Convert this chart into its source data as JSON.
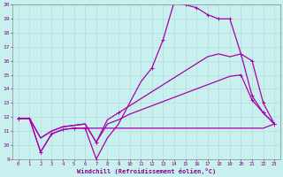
{
  "background_color": "#c8f0ee",
  "grid_color": "#b0d8d8",
  "line_color": "#aa00aa",
  "xlabel": "Windchill (Refroidissement éolien,°C)",
  "xlabel_color": "#880088",
  "tick_color": "#880088",
  "xlim": [
    -0.5,
    23.5
  ],
  "ylim": [
    9,
    20
  ],
  "xticks": [
    0,
    1,
    2,
    3,
    4,
    5,
    6,
    7,
    8,
    9,
    10,
    11,
    12,
    13,
    14,
    15,
    16,
    17,
    18,
    19,
    20,
    21,
    22,
    23
  ],
  "yticks": [
    9,
    10,
    11,
    12,
    13,
    14,
    15,
    16,
    17,
    18,
    19,
    20
  ],
  "line1_x": [
    0,
    1,
    2,
    3,
    4,
    5,
    6,
    7,
    8,
    9,
    10,
    11,
    12,
    13,
    14,
    15,
    16,
    17,
    18,
    19,
    20,
    21,
    22,
    23
  ],
  "line1_y": [
    11.9,
    11.9,
    9.5,
    10.8,
    11.1,
    11.2,
    11.2,
    11.2,
    11.2,
    11.2,
    11.2,
    11.2,
    11.2,
    11.2,
    11.2,
    11.2,
    11.2,
    11.2,
    11.2,
    11.2,
    11.2,
    11.2,
    11.2,
    11.5
  ],
  "line1_mx": [
    0,
    1,
    2,
    3,
    4,
    5,
    6,
    23
  ],
  "line1_my": [
    11.9,
    11.9,
    9.5,
    10.8,
    11.1,
    11.2,
    11.2,
    11.5
  ],
  "line2_x": [
    0,
    1,
    2,
    3,
    4,
    5,
    6,
    7,
    8,
    9,
    10,
    11,
    12,
    13,
    14,
    15,
    16,
    17,
    18,
    19,
    20,
    21,
    22,
    23
  ],
  "line2_y": [
    11.9,
    11.9,
    10.5,
    11.0,
    11.3,
    11.4,
    11.5,
    10.2,
    11.5,
    11.8,
    12.2,
    12.5,
    12.8,
    13.1,
    13.4,
    13.7,
    14.0,
    14.3,
    14.6,
    14.9,
    15.0,
    13.2,
    12.3,
    11.5
  ],
  "line2_mx": [
    0,
    7,
    20,
    21,
    22,
    23
  ],
  "line2_my": [
    11.9,
    10.2,
    15.0,
    13.2,
    12.3,
    11.5
  ],
  "line3_x": [
    0,
    1,
    2,
    3,
    4,
    5,
    6,
    7,
    8,
    9,
    10,
    11,
    12,
    13,
    14,
    15,
    16,
    17,
    18,
    19,
    20,
    21,
    22,
    23
  ],
  "line3_y": [
    11.9,
    11.9,
    10.5,
    11.0,
    11.3,
    11.4,
    11.5,
    10.2,
    11.8,
    12.3,
    12.8,
    13.3,
    13.8,
    14.3,
    14.8,
    15.3,
    15.8,
    16.3,
    16.5,
    16.3,
    16.5,
    13.5,
    12.3,
    11.5
  ],
  "line3_mx": [
    0,
    7,
    9,
    20,
    21,
    22,
    23
  ],
  "line3_my": [
    11.9,
    10.2,
    12.3,
    16.5,
    13.5,
    12.3,
    11.5
  ],
  "line4_x": [
    0,
    1,
    2,
    3,
    4,
    5,
    6,
    7,
    8,
    9,
    10,
    11,
    12,
    13,
    14,
    15,
    16,
    17,
    18,
    19,
    20,
    21,
    22,
    23
  ],
  "line4_y": [
    11.9,
    11.9,
    9.5,
    10.8,
    11.1,
    11.2,
    11.2,
    9.0,
    10.5,
    11.5,
    13.0,
    14.5,
    15.5,
    17.5,
    20.2,
    20.0,
    19.8,
    19.3,
    19.0,
    19.0,
    16.5,
    16.0,
    13.0,
    11.5
  ],
  "line4_mx": [
    0,
    2,
    7,
    12,
    13,
    14,
    15,
    16,
    17,
    18,
    19,
    20,
    21,
    22,
    23
  ],
  "line4_my": [
    11.9,
    9.5,
    9.0,
    15.5,
    17.5,
    20.2,
    20.0,
    19.8,
    19.3,
    19.0,
    19.0,
    16.5,
    16.0,
    13.0,
    11.5
  ]
}
